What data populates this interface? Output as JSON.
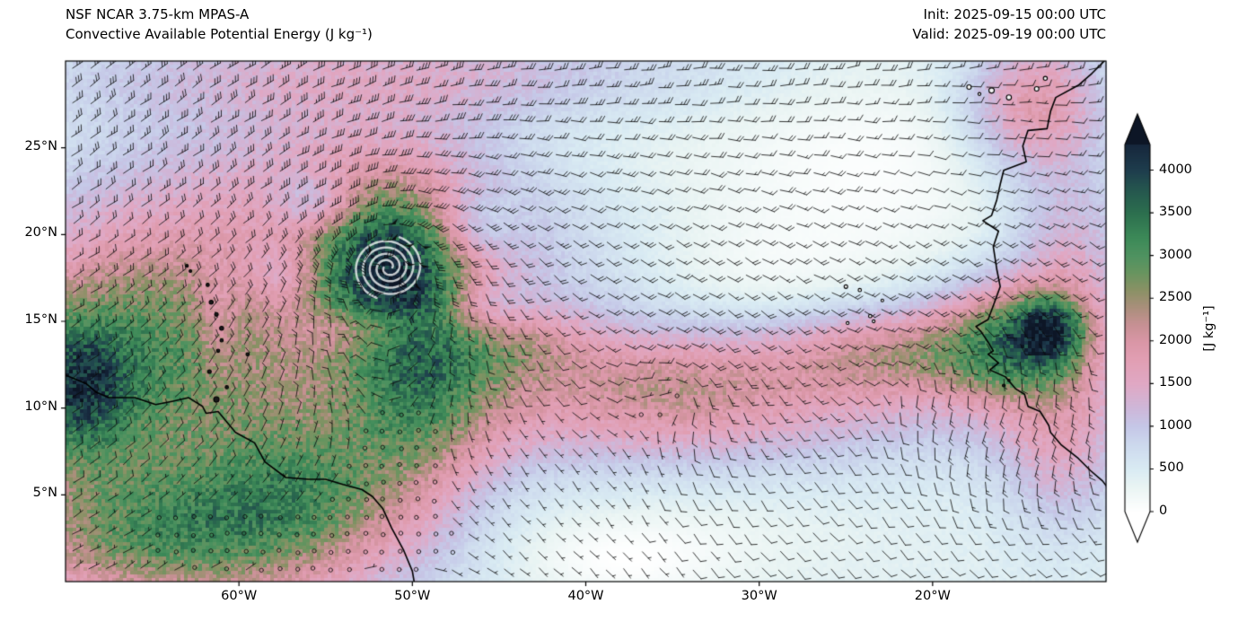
{
  "header": {
    "model": "NSF NCAR 3.75-km MPAS-A",
    "variable": "Convective Available Potential Energy (J kg⁻¹)",
    "init": "Init: 2025-09-15 00:00 UTC",
    "valid": "Valid: 2025-09-19 00:00 UTC"
  },
  "chart_data": {
    "type": "heatmap",
    "title": "Convective Available Potential Energy (J kg⁻¹)",
    "subtitle": "NSF NCAR 3.75-km MPAS-A",
    "init_time": "2025-09-15 00:00 UTC",
    "valid_time": "2025-09-19 00:00 UTC",
    "units": "J kg⁻¹",
    "extent": {
      "lon": [
        -70,
        -10
      ],
      "lat": [
        0,
        30
      ]
    },
    "x_axis": {
      "ticks": [
        {
          "lon": -60,
          "label": "60°W"
        },
        {
          "lon": -50,
          "label": "50°W"
        },
        {
          "lon": -40,
          "label": "40°W"
        },
        {
          "lon": -30,
          "label": "30°W"
        },
        {
          "lon": -20,
          "label": "20°W"
        }
      ]
    },
    "y_axis": {
      "ticks": [
        {
          "lat": 5,
          "label": "5°N"
        },
        {
          "lat": 10,
          "label": "10°N"
        },
        {
          "lat": 15,
          "label": "15°N"
        },
        {
          "lat": 20,
          "label": "20°N"
        },
        {
          "lat": 25,
          "label": "25°N"
        }
      ]
    },
    "colorbar": {
      "label": "[J kg⁻¹]",
      "vmax": 4300,
      "ticks": [
        {
          "value": 0,
          "label": "0"
        },
        {
          "value": 500,
          "label": "500"
        },
        {
          "value": 1000,
          "label": "1000"
        },
        {
          "value": 1500,
          "label": "1500"
        },
        {
          "value": 2000,
          "label": "2000"
        },
        {
          "value": 2500,
          "label": "2500"
        },
        {
          "value": 3000,
          "label": "3000"
        },
        {
          "value": 3500,
          "label": "3500"
        },
        {
          "value": 4000,
          "label": "4000"
        }
      ],
      "stops": [
        [
          0,
          "#ffffff"
        ],
        [
          300,
          "#e9f4f3"
        ],
        [
          500,
          "#d9ebf3"
        ],
        [
          800,
          "#ccd8ed"
        ],
        [
          1000,
          "#c5c7e7"
        ],
        [
          1200,
          "#cdb8da"
        ],
        [
          1500,
          "#e0a8c4"
        ],
        [
          1800,
          "#e19eb2"
        ],
        [
          2000,
          "#d996a6"
        ],
        [
          2200,
          "#c69093"
        ],
        [
          2400,
          "#a98f7b"
        ],
        [
          2600,
          "#8a9165"
        ],
        [
          2800,
          "#68945f"
        ],
        [
          3000,
          "#4f9260"
        ],
        [
          3200,
          "#3d8a58"
        ],
        [
          3500,
          "#2c6f4e"
        ],
        [
          3800,
          "#24544e"
        ],
        [
          4000,
          "#1e3d4d"
        ],
        [
          4300,
          "#16273c"
        ],
        [
          4600,
          "#0d1626"
        ]
      ]
    },
    "seed": 7,
    "field": {
      "base": 400,
      "blobs": [
        [
          -66,
          13,
          6.5,
          5.5,
          2400
        ],
        [
          -69.5,
          11,
          2.2,
          2.8,
          1800
        ],
        [
          -63,
          2.5,
          8,
          3.2,
          2300
        ],
        [
          -56,
          6,
          4,
          3,
          1300
        ],
        [
          -51.4,
          18.1,
          3.2,
          3.2,
          2300
        ],
        [
          -51,
          18,
          7.5,
          6,
          1000
        ],
        [
          -49.5,
          11,
          3,
          4.5,
          1500
        ],
        [
          -35,
          10.8,
          13,
          3,
          1300
        ],
        [
          -34.5,
          11.2,
          4,
          2,
          500
        ],
        [
          -15.2,
          13.8,
          3.2,
          2.4,
          2300
        ],
        [
          -13.2,
          14.6,
          1.4,
          1.3,
          1700
        ],
        [
          -22.5,
          13.2,
          4.5,
          1.8,
          1200
        ],
        [
          -14,
          27.5,
          2.8,
          2.8,
          1500
        ],
        [
          -12,
          19,
          2.5,
          3.5,
          900
        ],
        [
          -12.5,
          8,
          2.5,
          3.5,
          1000
        ],
        [
          -52,
          29.3,
          14,
          2,
          800
        ],
        [
          -55,
          23.5,
          9,
          3.5,
          500
        ],
        [
          -44,
          13.5,
          3,
          1.5,
          700
        ],
        [
          -24,
          24,
          7,
          4.5,
          -350
        ],
        [
          -30,
          17,
          5,
          2.5,
          -250
        ],
        [
          -42,
          25,
          6,
          3,
          -200
        ],
        [
          -55.5,
          21.8,
          1.8,
          1.2,
          -900
        ],
        [
          -46.5,
          20.5,
          1.8,
          1.5,
          -800
        ],
        [
          -52.5,
          14.6,
          2.6,
          1.0,
          -900
        ],
        [
          -45.8,
          15.8,
          1.8,
          1.2,
          -700
        ],
        [
          -57.5,
          17.8,
          1.6,
          1.4,
          -700
        ],
        [
          -61.3,
          15,
          0.8,
          2.5,
          -500
        ],
        [
          -38,
          1,
          4,
          1.5,
          -300
        ],
        [
          -36,
          3,
          8,
          2,
          -200
        ]
      ]
    },
    "wind": {
      "base_u": -13,
      "tropics_v": 1.5,
      "ne_lat": 20,
      "ne_du": -0.35,
      "ne_dv": -0.85,
      "monsoon": {
        "lon": -14,
        "lat": 9,
        "sx": 5,
        "sy": 3.5,
        "u": 16,
        "v": 7
      }
    },
    "vortices": [
      {
        "lon": -51.4,
        "lat": 18.1,
        "vmax": 55,
        "rm": 1.3,
        "decay": 0.7
      },
      {
        "lon": -34.5,
        "lat": 11.2,
        "vmax": 14,
        "rm": 1.8,
        "decay": 1.0
      },
      {
        "lon": -20.5,
        "lat": 12.5,
        "vmax": 9,
        "rm": 2.0,
        "decay": 1.0
      }
    ],
    "calm_zones": [
      {
        "lon": -62,
        "lat": 2.5,
        "sx": 6,
        "sy": 2.2,
        "f": 0.8
      },
      {
        "lon": -34.5,
        "lat": 11.2,
        "sx": 1.4,
        "sy": 1.1,
        "f": 0.75
      },
      {
        "lon": -16.5,
        "lat": 12,
        "sx": 2.5,
        "sy": 2,
        "f": 0.6
      },
      {
        "lon": -14.5,
        "lat": 27.5,
        "sx": 3,
        "sy": 2,
        "f": 0.6
      },
      {
        "lon": -20,
        "lat": 24,
        "sx": 4,
        "sy": 3,
        "f": 0.35
      }
    ],
    "spiral": {
      "lon": -51.4,
      "lat": 18.1,
      "turns": 2.2,
      "r0": 0.25,
      "dr": 0.8,
      "width": 2.5,
      "alpha": 0.75
    },
    "coastlines": [
      [
        [
          -70,
          11.9
        ],
        [
          -68.8,
          11.4
        ],
        [
          -68.2,
          10.9
        ],
        [
          -67.5,
          10.6
        ],
        [
          -66,
          10.6
        ],
        [
          -64.8,
          10.2
        ],
        [
          -63.8,
          10.4
        ],
        [
          -62.9,
          10.6
        ],
        [
          -62.1,
          10.1
        ],
        [
          -61.9,
          9.7
        ],
        [
          -61.2,
          9.8
        ],
        [
          -60.2,
          8.6
        ],
        [
          -59.1,
          8.0
        ],
        [
          -58.5,
          6.9
        ],
        [
          -57.3,
          6.0
        ],
        [
          -56,
          5.9
        ],
        [
          -55,
          5.9
        ],
        [
          -54,
          5.6
        ],
        [
          -52.9,
          5.3
        ],
        [
          -52.3,
          4.9
        ],
        [
          -51.7,
          4.2
        ],
        [
          -51.2,
          3.1
        ],
        [
          -50.5,
          1.8
        ],
        [
          -50,
          0.6
        ],
        [
          -49.9,
          0
        ]
      ],
      [
        [
          -10.1,
          30
        ],
        [
          -10.8,
          29.3
        ],
        [
          -11.6,
          28.6
        ],
        [
          -12.9,
          27.9
        ],
        [
          -13.2,
          27.1
        ],
        [
          -13.4,
          26.1
        ],
        [
          -14.5,
          26.0
        ],
        [
          -14.8,
          25.1
        ],
        [
          -14.6,
          24.2
        ],
        [
          -15.9,
          23.7
        ],
        [
          -16.1,
          22.9
        ],
        [
          -16.3,
          22.0
        ],
        [
          -16.6,
          21.1
        ],
        [
          -17.1,
          20.8
        ],
        [
          -16.2,
          20.2
        ],
        [
          -16.5,
          19.3
        ],
        [
          -16.3,
          18.0
        ],
        [
          -16.1,
          17.0
        ],
        [
          -16.5,
          15.9
        ],
        [
          -16.8,
          15.1
        ],
        [
          -17.5,
          14.7
        ],
        [
          -17.2,
          14.4
        ],
        [
          -16.8,
          13.8
        ],
        [
          -16.5,
          13.3
        ],
        [
          -16.8,
          13.1
        ],
        [
          -16.2,
          12.6
        ],
        [
          -16.7,
          12.2
        ],
        [
          -15.8,
          11.8
        ],
        [
          -15.2,
          11.1
        ],
        [
          -14.7,
          10.8
        ],
        [
          -14.5,
          10.1
        ],
        [
          -13.8,
          9.8
        ],
        [
          -13.3,
          9.0
        ],
        [
          -13.2,
          8.6
        ],
        [
          -12.6,
          7.9
        ],
        [
          -11.6,
          7.1
        ],
        [
          -10.9,
          6.4
        ],
        [
          -10.2,
          5.8
        ],
        [
          -9.9,
          5.4
        ]
      ]
    ],
    "islands": [
      {
        "lon": -61.3,
        "lat": 10.5,
        "r": 3.0,
        "dark": true
      },
      {
        "lon": -60.7,
        "lat": 11.2,
        "r": 1.8,
        "dark": true
      },
      {
        "lon": -61.7,
        "lat": 12.1,
        "r": 2.0,
        "dark": true
      },
      {
        "lon": -59.5,
        "lat": 13.1,
        "r": 1.8,
        "dark": true
      },
      {
        "lon": -61.2,
        "lat": 13.3,
        "r": 1.8,
        "dark": true
      },
      {
        "lon": -61.0,
        "lat": 13.9,
        "r": 1.8,
        "dark": true
      },
      {
        "lon": -61.0,
        "lat": 14.6,
        "r": 2.2,
        "dark": true
      },
      {
        "lon": -61.3,
        "lat": 15.4,
        "r": 2.0,
        "dark": true
      },
      {
        "lon": -61.6,
        "lat": 16.1,
        "r": 2.2,
        "dark": true
      },
      {
        "lon": -61.8,
        "lat": 17.1,
        "r": 1.8,
        "dark": true
      },
      {
        "lon": -62.8,
        "lat": 17.9,
        "r": 1.5,
        "dark": true
      },
      {
        "lon": -63.0,
        "lat": 18.2,
        "r": 1.5,
        "dark": true
      },
      {
        "lon": -25.0,
        "lat": 17.0,
        "r": 2.0,
        "dark": false
      },
      {
        "lon": -24.2,
        "lat": 16.8,
        "r": 1.8,
        "dark": false
      },
      {
        "lon": -22.9,
        "lat": 16.2,
        "r": 1.5,
        "dark": false
      },
      {
        "lon": -23.6,
        "lat": 15.3,
        "r": 1.8,
        "dark": false
      },
      {
        "lon": -23.4,
        "lat": 15.0,
        "r": 1.6,
        "dark": false
      },
      {
        "lon": -24.9,
        "lat": 14.9,
        "r": 1.6,
        "dark": false
      },
      {
        "lon": -17.9,
        "lat": 28.5,
        "r": 2.5,
        "dark": false
      },
      {
        "lon": -16.6,
        "lat": 28.3,
        "r": 3.0,
        "dark": false
      },
      {
        "lon": -17.3,
        "lat": 28.1,
        "r": 1.6,
        "dark": false
      },
      {
        "lon": -15.6,
        "lat": 27.9,
        "r": 2.8,
        "dark": false
      },
      {
        "lon": -14.0,
        "lat": 28.4,
        "r": 2.5,
        "dark": false
      },
      {
        "lon": -13.5,
        "lat": 29.0,
        "r": 2.2,
        "dark": false
      },
      {
        "lon": -15.9,
        "lat": 11.3,
        "r": 1.5,
        "dark": true
      },
      {
        "lon": -15.6,
        "lat": 11.6,
        "r": 1.3,
        "dark": true
      }
    ]
  }
}
